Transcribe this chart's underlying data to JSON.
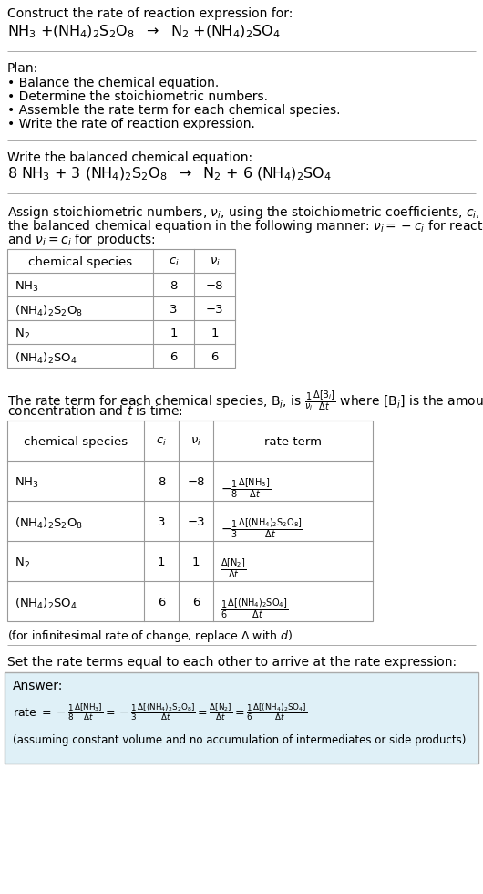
{
  "bg_color": "#ffffff",
  "title_line1": "Construct the rate of reaction expression for:",
  "plan_header": "Plan:",
  "plan_items": [
    "• Balance the chemical equation.",
    "• Determine the stoichiometric numbers.",
    "• Assemble the rate term for each chemical species.",
    "• Write the rate of reaction expression."
  ],
  "balanced_header": "Write the balanced chemical equation:",
  "stoich_text": [
    "Assign stoichiometric numbers, $\\nu_i$, using the stoichiometric coefficients, $c_i$, from",
    "the balanced chemical equation in the following manner: $\\nu_i = -c_i$ for reactants",
    "and $\\nu_i = c_i$ for products:"
  ],
  "table1_headers": [
    "chemical species",
    "$c_i$",
    "$\\nu_i$"
  ],
  "table1_data": [
    [
      "NH$_3$",
      "8",
      "−8"
    ],
    [
      "(NH$_4$)$_2$S$_2$O$_8$",
      "3",
      "−3"
    ],
    [
      "N$_2$",
      "1",
      "1"
    ],
    [
      "(NH$_4$)$_2$SO$_4$",
      "6",
      "6"
    ]
  ],
  "rate_text": [
    "The rate term for each chemical species, B$_i$, is $\\frac{1}{\\nu_i}\\frac{\\Delta[\\mathrm{B}_i]}{\\Delta t}$ where [B$_i$] is the amount",
    "concentration and $t$ is time:"
  ],
  "table2_headers": [
    "chemical species",
    "$c_i$",
    "$\\nu_i$",
    "rate term"
  ],
  "table2_data": [
    [
      "NH$_3$",
      "8",
      "−8"
    ],
    [
      "(NH$_4$)$_2$S$_2$O$_8$",
      "3",
      "−3"
    ],
    [
      "N$_2$",
      "1",
      "1"
    ],
    [
      "(NH$_4$)$_2$SO$_4$",
      "6",
      "6"
    ]
  ],
  "rate_terms": [
    "$-\\frac{1}{8}\\frac{\\Delta[\\mathrm{NH_3}]}{\\Delta t}$",
    "$-\\frac{1}{3}\\frac{\\Delta[(\\mathrm{NH_4})_2\\mathrm{S_2O_8}]}{\\Delta t}$",
    "$\\frac{\\Delta[\\mathrm{N_2}]}{\\Delta t}$",
    "$\\frac{1}{6}\\frac{\\Delta[(\\mathrm{NH_4})_2\\mathrm{SO_4}]}{\\Delta t}$"
  ],
  "infinitesimal_note": "(for infinitesimal rate of change, replace Δ with $d$)",
  "set_rate_text": "Set the rate terms equal to each other to arrive at the rate expression:",
  "answer_box_color": "#dff0f7",
  "answer_header": "Answer:",
  "answer_footnote": "(assuming constant volume and no accumulation of intermediates or side products)"
}
